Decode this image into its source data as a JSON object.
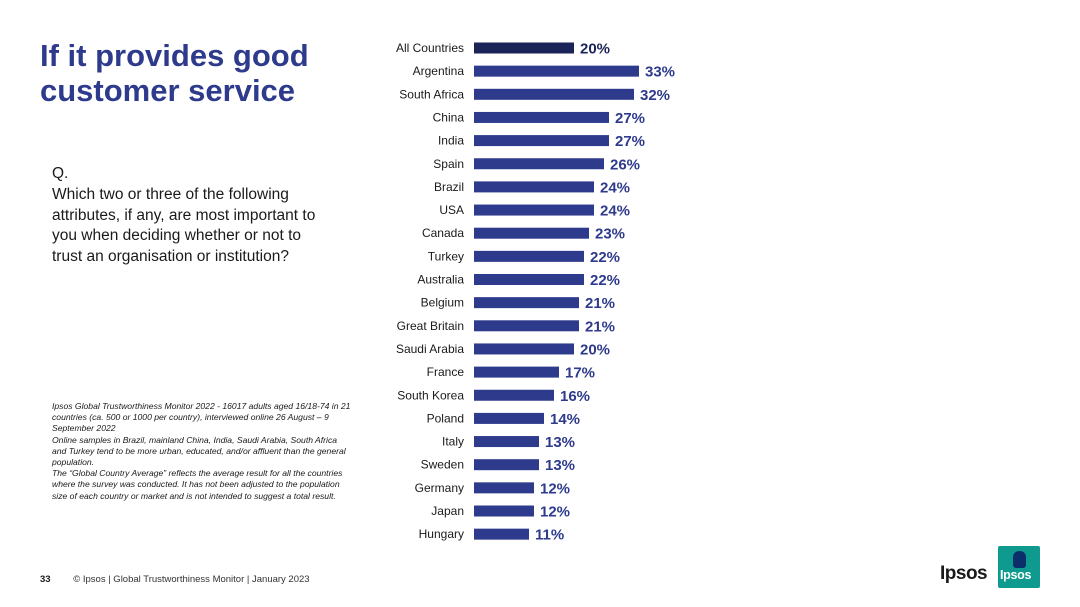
{
  "slide": {
    "title": "If it provides good customer service",
    "question_label": "Q.",
    "question_text": "Which two or three of the following attributes, if any, are most important to you when deciding whether or not to trust an organisation or institution?",
    "notes": [
      "Ipsos Global Trustworthiness Monitor 2022 - 16017 adults aged 16/18-74 in 21 countries (ca. 500 or 1000 per country), interviewed online 26 August – 9 September 2022",
      "Online samples in Brazil, mainland China, India, Saudi Arabia, South Africa and Turkey tend to be more urban, educated, and/or affluent than the general population.",
      "The “Global Country Average” reflects the average result for all the countries where the survey was conducted. It has not been adjusted to the population size of each country or market and is not intended to suggest a total result."
    ],
    "page_number": "33",
    "footer_text": "© Ipsos | Global Trustworthiness Monitor | January 2023",
    "logo_text": "Ipsos",
    "badge_text": "Ipsos"
  },
  "colors": {
    "title": "#2e3a8c",
    "bar": "#2e3a8c",
    "bar_highlight": "#1b2459",
    "label": "#2e3a8c",
    "badge": "#0f9a8f"
  },
  "chart_data": {
    "type": "bar",
    "orientation": "horizontal",
    "categories": [
      "All Countries",
      "Argentina",
      "South Africa",
      "China",
      "India",
      "Spain",
      "Brazil",
      "USA",
      "Canada",
      "Turkey",
      "Australia",
      "Belgium",
      "Great Britain",
      "Saudi Arabia",
      "France",
      "South Korea",
      "Poland",
      "Italy",
      "Sweden",
      "Germany",
      "Japan",
      "Hungary"
    ],
    "values": [
      20,
      33,
      32,
      27,
      27,
      26,
      24,
      24,
      23,
      22,
      22,
      21,
      21,
      20,
      17,
      16,
      14,
      13,
      13,
      12,
      12,
      11
    ],
    "value_suffix": "%",
    "highlight_category": "All Countries",
    "grid": false,
    "legend": "none"
  }
}
